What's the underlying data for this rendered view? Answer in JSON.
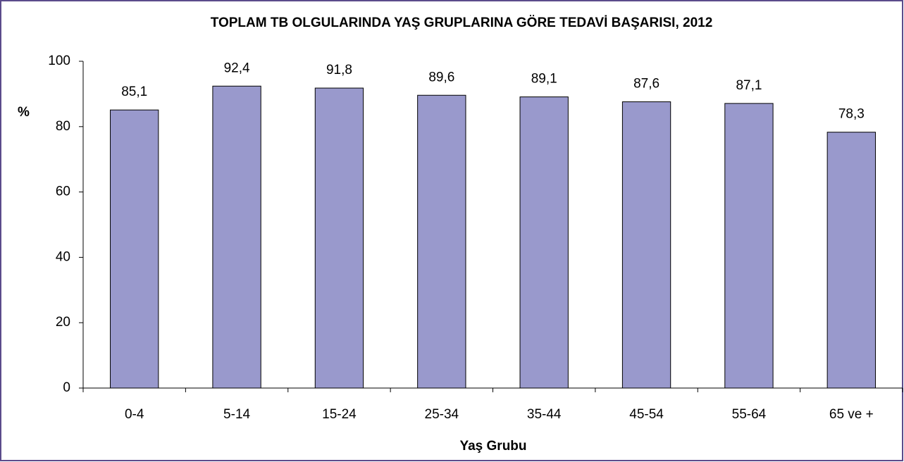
{
  "chart_data": {
    "type": "bar",
    "title": "TOPLAM TB OLGULARINDA YAŞ GRUPLARINA GÖRE TEDAVİ BAŞARISI, 2012",
    "x_label": "Yaş Grubu",
    "y_label": "%",
    "categories": [
      "0-4",
      "5-14",
      "15-24",
      "25-34",
      "35-44",
      "45-54",
      "55-64",
      "65 ve +"
    ],
    "values": [
      85.1,
      92.4,
      91.8,
      89.6,
      89.1,
      87.6,
      87.1,
      78.3
    ],
    "value_labels": [
      "85,1",
      "92,4",
      "91,8",
      "89,6",
      "89,1",
      "87,6",
      "87,1",
      "78,3"
    ],
    "color": "#9999cc",
    "ylim": [
      0,
      100
    ],
    "yticks": [
      0,
      20,
      40,
      60,
      80,
      100
    ],
    "grid": false
  }
}
